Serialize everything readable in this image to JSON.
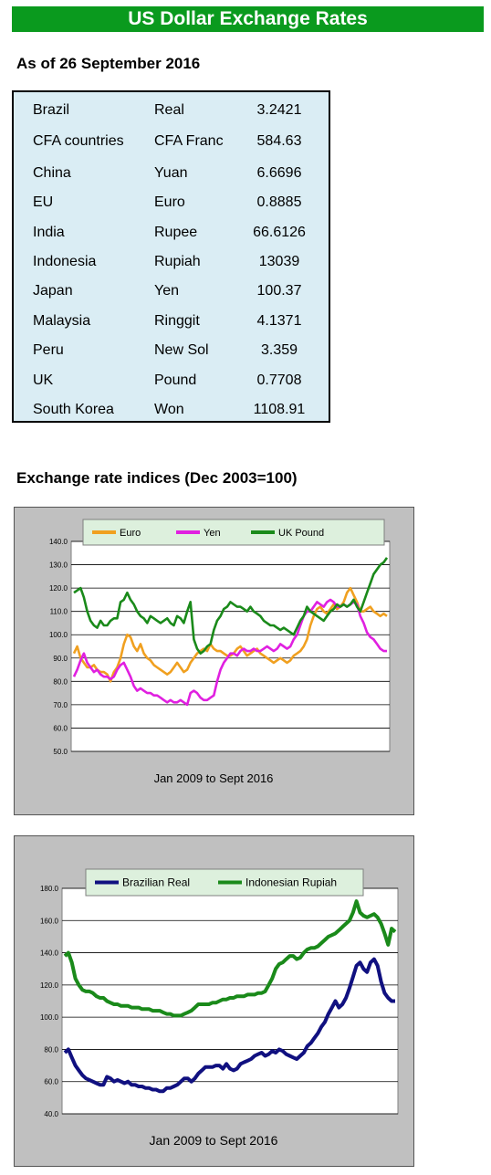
{
  "header": {
    "title": "US Dollar Exchange Rates",
    "as_of": "As of 26 September 2016"
  },
  "rates": [
    {
      "country": "Brazil",
      "currency": "Real",
      "value": "3.2421"
    },
    {
      "country": "CFA countries",
      "currency": "CFA Franc",
      "value": "584.63"
    },
    {
      "country": "China",
      "currency": "Yuan",
      "value": "6.6696"
    },
    {
      "country": "EU",
      "currency": "Euro",
      "value": "0.8885"
    },
    {
      "country": "India",
      "currency": "Rupee",
      "value": "66.6126"
    },
    {
      "country": "Indonesia",
      "currency": "Rupiah",
      "value": "13039"
    },
    {
      "country": "Japan",
      "currency": "Yen",
      "value": "100.37"
    },
    {
      "country": "Malaysia",
      "currency": "Ringgit",
      "value": "4.1371"
    },
    {
      "country": "Peru",
      "currency": "New Sol",
      "value": "3.359"
    },
    {
      "country": "UK",
      "currency": "Pound",
      "value": "0.7708"
    },
    {
      "country": "South Korea",
      "currency": "Won",
      "value": "1108.91"
    }
  ],
  "indices_title": "Exchange rate indices (Dec 2003=100)",
  "chart_data": [
    {
      "type": "line",
      "xlabel": "Jan 2009 to Sept 2016",
      "ylim": [
        50,
        140
      ],
      "yticks": [
        "140.0",
        "130.0",
        "120.0",
        "110.0",
        "100.0",
        "90.0",
        "80.0",
        "70.0",
        "60.0",
        "50.0"
      ],
      "grid": true,
      "legend": "top",
      "series": [
        {
          "name": "Euro",
          "color": "#f0a020",
          "values": [
            92,
            95,
            90,
            88,
            86,
            86,
            87,
            85,
            84,
            84,
            83,
            80,
            84,
            86,
            90,
            96,
            100,
            99,
            95,
            93,
            96,
            92,
            90,
            89,
            87,
            86,
            85,
            84,
            83,
            84,
            86,
            88,
            86,
            84,
            85,
            88,
            90,
            92,
            93,
            94,
            93,
            96,
            94,
            93,
            93,
            92,
            91,
            91,
            92,
            94,
            95,
            93,
            91,
            92,
            93,
            94,
            92,
            91,
            90,
            89,
            88,
            89,
            90,
            89,
            88,
            89,
            91,
            92,
            93,
            95,
            98,
            104,
            108,
            111,
            112,
            110,
            109,
            111,
            113,
            111,
            112,
            114,
            118,
            120,
            117,
            114,
            110,
            110,
            111,
            112,
            110,
            109,
            108,
            109,
            108
          ]
        },
        {
          "name": "Yen",
          "color": "#e020e0",
          "values": [
            82,
            85,
            89,
            92,
            88,
            86,
            84,
            85,
            83,
            82,
            82,
            81,
            82,
            85,
            87,
            88,
            85,
            82,
            78,
            76,
            77,
            76,
            75,
            75,
            74,
            74,
            73,
            72,
            71,
            72,
            71,
            71,
            72,
            71,
            70,
            75,
            76,
            75,
            73,
            72,
            72,
            73,
            74,
            80,
            85,
            88,
            90,
            92,
            92,
            91,
            93,
            94,
            93,
            93,
            94,
            93,
            93,
            94,
            95,
            94,
            93,
            94,
            96,
            95,
            94,
            95,
            98,
            100,
            104,
            108,
            110,
            110,
            112,
            114,
            113,
            112,
            114,
            115,
            114,
            112,
            112,
            113,
            112,
            113,
            114,
            113,
            108,
            105,
            101,
            99,
            98,
            96,
            94,
            93,
            93
          ]
        },
        {
          "name": "UK Pound",
          "color": "#1a8a1a",
          "values": [
            118,
            119,
            120,
            116,
            110,
            106,
            104,
            103,
            106,
            104,
            104,
            106,
            107,
            107,
            114,
            115,
            118,
            115,
            113,
            110,
            108,
            107,
            105,
            108,
            107,
            106,
            105,
            106,
            107,
            105,
            104,
            108,
            107,
            105,
            110,
            114,
            98,
            94,
            92,
            93,
            95,
            96,
            102,
            106,
            108,
            111,
            112,
            114,
            113,
            112,
            112,
            111,
            110,
            112,
            110,
            109,
            108,
            106,
            105,
            104,
            104,
            103,
            102,
            103,
            102,
            101,
            100,
            103,
            106,
            108,
            112,
            110,
            109,
            108,
            107,
            106,
            108,
            110,
            111,
            113,
            112,
            113,
            112,
            113,
            115,
            112,
            110,
            114,
            118,
            122,
            126,
            128,
            130,
            131,
            133
          ]
        }
      ]
    },
    {
      "type": "line",
      "xlabel": "Jan 2009 to Sept 2016",
      "ylim": [
        40,
        180
      ],
      "yticks": [
        "180.0",
        "160.0",
        "140.0",
        "120.0",
        "100.0",
        "80.0",
        "60.0",
        "40.0"
      ],
      "grid": true,
      "legend": "top",
      "series": [
        {
          "name": "Brazilian Real",
          "color": "#101080",
          "values": [
            78,
            80,
            75,
            70,
            67,
            64,
            62,
            61,
            60,
            59,
            58,
            58,
            63,
            62,
            60,
            61,
            60,
            59,
            60,
            58,
            58,
            57,
            57,
            56,
            56,
            55,
            55,
            54,
            54,
            56,
            56,
            57,
            58,
            60,
            62,
            62,
            60,
            62,
            65,
            67,
            69,
            69,
            69,
            70,
            70,
            68,
            71,
            68,
            67,
            68,
            71,
            72,
            73,
            74,
            76,
            77,
            78,
            76,
            77,
            79,
            78,
            80,
            79,
            77,
            76,
            75,
            74,
            76,
            78,
            82,
            84,
            87,
            90,
            94,
            97,
            102,
            106,
            110,
            106,
            108,
            112,
            118,
            125,
            132,
            134,
            130,
            128,
            134,
            136,
            132,
            122,
            115,
            112,
            110,
            110
          ]
        },
        {
          "name": "Indonesian Rupiah",
          "color": "#1a8a1a",
          "values": [
            138,
            140,
            134,
            124,
            120,
            117,
            116,
            116,
            115,
            113,
            112,
            112,
            110,
            109,
            108,
            108,
            107,
            107,
            107,
            106,
            106,
            106,
            105,
            105,
            105,
            104,
            104,
            104,
            103,
            102,
            102,
            101,
            101,
            101,
            102,
            103,
            104,
            106,
            108,
            108,
            108,
            108,
            109,
            109,
            110,
            111,
            111,
            112,
            112,
            113,
            113,
            113,
            114,
            114,
            114,
            115,
            115,
            116,
            120,
            124,
            130,
            133,
            134,
            136,
            138,
            138,
            136,
            137,
            140,
            142,
            143,
            143,
            144,
            146,
            148,
            150,
            151,
            152,
            154,
            156,
            158,
            160,
            165,
            172,
            165,
            163,
            162,
            163,
            164,
            162,
            158,
            152,
            145,
            155,
            153
          ]
        }
      ]
    }
  ]
}
